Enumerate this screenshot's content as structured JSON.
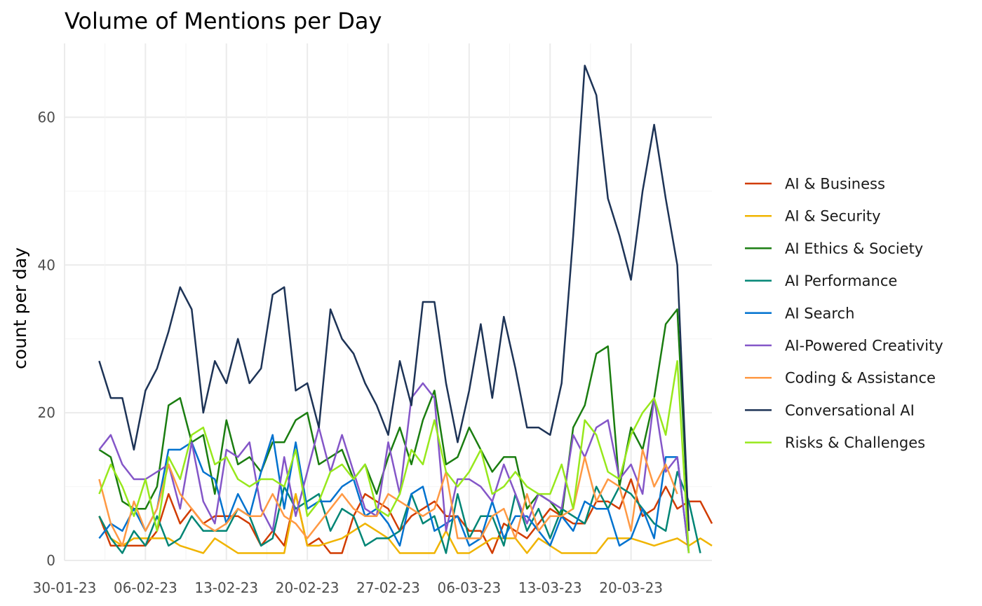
{
  "chart_data": {
    "type": "line",
    "title": "Volume of Mentions per Day",
    "xlabel": "",
    "ylabel": "count per day",
    "x_start": "2023-02-02",
    "x_end": "2023-03-26",
    "xlim": [
      "2023-01-30",
      "2023-03-27"
    ],
    "ylim": [
      0,
      70
    ],
    "x_ticks": [
      "30-01-23",
      "06-02-23",
      "13-02-23",
      "20-02-23",
      "27-02-23",
      "06-03-23",
      "13-03-23",
      "20-03-23"
    ],
    "y_ticks": [
      0,
      20,
      40,
      60
    ],
    "grid": true,
    "legend_position": "right",
    "series": [
      {
        "name": "AI & Business",
        "color": "#d13c00",
        "values": [
          6,
          2,
          2,
          2,
          2,
          4,
          9,
          5,
          7,
          5,
          6,
          6,
          6,
          5,
          2,
          4,
          2,
          9,
          2,
          3,
          1,
          1,
          6,
          9,
          8,
          7,
          4,
          6,
          7,
          8,
          6,
          6,
          4,
          4,
          1,
          5,
          4,
          3,
          5,
          7,
          6,
          5,
          5,
          8,
          8,
          7,
          11,
          6,
          7,
          10,
          7,
          8,
          8,
          5
        ]
      },
      {
        "name": "AI & Security",
        "color": "#f0b400",
        "values": [
          6,
          3,
          2,
          3,
          3,
          3,
          3,
          2,
          1.5,
          1,
          3,
          2,
          1,
          1,
          1,
          1,
          1,
          9,
          2,
          2,
          2.5,
          3,
          4,
          5,
          4,
          3,
          1,
          1,
          1,
          1,
          4,
          1,
          1,
          2,
          3,
          3,
          3,
          1,
          3,
          2,
          1,
          1,
          1,
          1,
          3,
          3,
          3,
          2.5,
          2,
          2.5,
          3,
          2,
          3,
          2
        ]
      },
      {
        "name": "AI Ethics & Society",
        "color": "#1a7d10",
        "values": [
          15,
          14,
          8,
          7,
          7,
          10,
          21,
          22,
          16,
          17,
          9,
          19,
          13,
          14,
          12,
          16,
          16,
          19,
          20,
          13,
          14,
          15,
          11,
          13,
          9,
          14,
          18,
          13,
          19,
          23,
          13,
          14,
          18,
          15,
          12,
          14,
          14,
          7,
          9,
          8,
          6,
          18,
          21,
          28,
          29,
          10,
          18,
          15,
          22,
          32,
          34,
          4
        ]
      },
      {
        "name": "AI Performance",
        "color": "#008575",
        "values": [
          6,
          3,
          1,
          4,
          2,
          6,
          2,
          3,
          6,
          4,
          4,
          4,
          7,
          6,
          2,
          3,
          10,
          7,
          8,
          9,
          4,
          7,
          6,
          2,
          3,
          3,
          4,
          9,
          5,
          6,
          1,
          9,
          3,
          6,
          6,
          2,
          9,
          4,
          7,
          3,
          7,
          6,
          5,
          10,
          7,
          10,
          9,
          7,
          5,
          4,
          12,
          8,
          1
        ]
      },
      {
        "name": "AI Search",
        "color": "#0072cf",
        "values": [
          3,
          5,
          4,
          7,
          4,
          7,
          15,
          15,
          16,
          12,
          11,
          5,
          9,
          6,
          12,
          17,
          7,
          16,
          7,
          8,
          8,
          10,
          11,
          6,
          7,
          5,
          2,
          9,
          10,
          4,
          5,
          6,
          2,
          3,
          8,
          3,
          6,
          6,
          4,
          2,
          6,
          4,
          8,
          7,
          7,
          2,
          3,
          7,
          3,
          14,
          14,
          1
        ]
      },
      {
        "name": "AI-Powered Creativity",
        "color": "#8456c8",
        "values": [
          15,
          17,
          13,
          11,
          11,
          12,
          13,
          7,
          16,
          8,
          5,
          15,
          14,
          16,
          7,
          4,
          14,
          6,
          12,
          18,
          12,
          17,
          12,
          7,
          6,
          16,
          9,
          22,
          24,
          22,
          4,
          11,
          11,
          10,
          8,
          13,
          9,
          5,
          9,
          8,
          7,
          17,
          14,
          18,
          19,
          11,
          13,
          9,
          22,
          12,
          14,
          1
        ]
      },
      {
        "name": "Coding & Assistance",
        "color": "#ff9944",
        "values": [
          11,
          5,
          2,
          8,
          4,
          7,
          13,
          9,
          7,
          5,
          4,
          5,
          7,
          6,
          6,
          9,
          6,
          5,
          3,
          5,
          7,
          9,
          7,
          6,
          6,
          9,
          8,
          7,
          6,
          7,
          12,
          3,
          3,
          3,
          6,
          7,
          3,
          9,
          4,
          6,
          6,
          7,
          14,
          8,
          11,
          10,
          4,
          15,
          10,
          13,
          9
        ]
      },
      {
        "name": "Conversational AI",
        "color": "#1d3356",
        "values": [
          27,
          22,
          22,
          15,
          23,
          26,
          31,
          37,
          34,
          20,
          27,
          24,
          30,
          24,
          26,
          36,
          37,
          23,
          24,
          18,
          34,
          30,
          28,
          24,
          21,
          17,
          27,
          21,
          35,
          35,
          24,
          16,
          23,
          32,
          22,
          33,
          26,
          18,
          18,
          17,
          24,
          44,
          67,
          63,
          49,
          44,
          38,
          50,
          59,
          49,
          40,
          4
        ]
      },
      {
        "name": "Risks & Challenges",
        "color": "#97e81c",
        "values": [
          9,
          13,
          10,
          6,
          11,
          4,
          14,
          11,
          17,
          18,
          13,
          14,
          11,
          10,
          11,
          11,
          10,
          15,
          6,
          8,
          12,
          13,
          11,
          13,
          7,
          6,
          9,
          15,
          13,
          19,
          12,
          10,
          12,
          15,
          9,
          10,
          12,
          10,
          9,
          9,
          13,
          7,
          19,
          17,
          12,
          11,
          17,
          20,
          22,
          17,
          27,
          1
        ]
      }
    ]
  }
}
